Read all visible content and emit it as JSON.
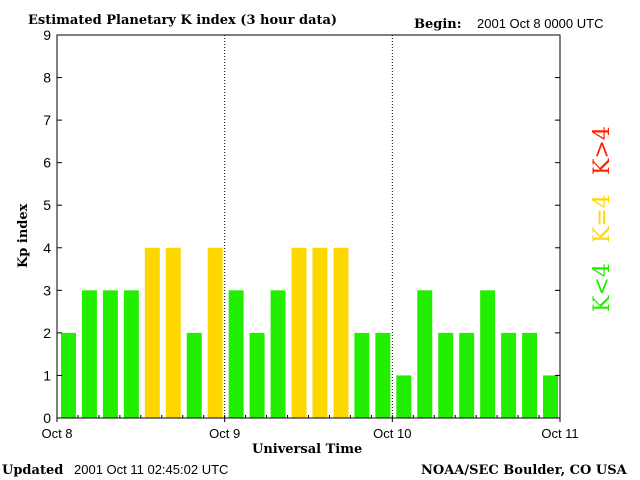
{
  "header": {
    "title": "Estimated Planetary K index (3 hour data)",
    "begin_label": "Begin:",
    "begin_value": "2001 Oct 8 0000 UTC"
  },
  "footer": {
    "updated_label": "Updated",
    "updated_value": "2001 Oct 11 02:45:02 UTC",
    "source": "NOAA/SEC Boulder, CO USA"
  },
  "legend": {
    "gt4": {
      "label": "K>4",
      "color": "#ff2200"
    },
    "eq4": {
      "label": "K=4",
      "color": "#ffd700"
    },
    "lt4": {
      "label": "K<4",
      "color": "#22ee00"
    }
  },
  "chart_data": {
    "type": "bar",
    "title": "Estimated Planetary K index (3 hour data)",
    "xlabel": "Universal Time",
    "ylabel": "Kp index",
    "ylim": [
      0,
      9
    ],
    "yticks": [
      0,
      1,
      2,
      3,
      4,
      5,
      6,
      7,
      8,
      9
    ],
    "xticks": [
      "Oct 8",
      "Oct 9",
      "Oct 10",
      "Oct 11"
    ],
    "day_dividers": [
      "Oct 9",
      "Oct 10"
    ],
    "interval_hours": 3,
    "values": [
      2,
      3,
      3,
      3,
      4,
      4,
      2,
      4,
      3,
      2,
      3,
      4,
      4,
      4,
      2,
      2,
      1,
      3,
      2,
      2,
      3,
      2,
      2,
      1
    ],
    "colors": {
      "below4": "#22ee00",
      "equal4": "#ffd700",
      "above4": "#ff2200"
    },
    "grid": false
  }
}
